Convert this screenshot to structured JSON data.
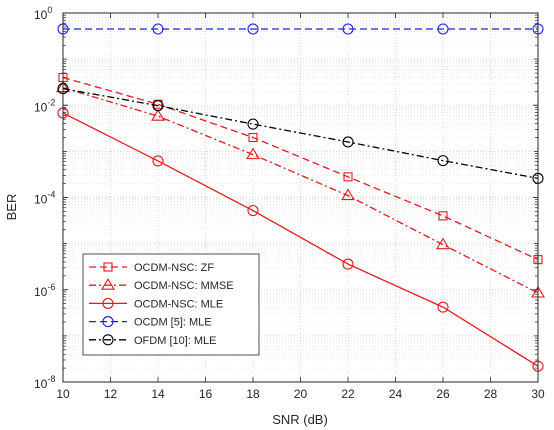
{
  "chart_data": {
    "type": "line",
    "title": "",
    "xlabel": "SNR (dB)",
    "ylabel": "BER",
    "xlim": [
      10,
      30
    ],
    "ylim": [
      1e-08,
      1
    ],
    "yscale": "log",
    "grid": true,
    "minor_grid": true,
    "legend_position": "bottom-left",
    "x_ticks": [
      10,
      12,
      14,
      16,
      18,
      20,
      22,
      24,
      26,
      28,
      30
    ],
    "x_tick_labels": [
      "10",
      "12",
      "14",
      "16",
      "18",
      "20",
      "22",
      "24",
      "26",
      "28",
      "30"
    ],
    "y_ticks": [
      {
        "value": 1,
        "base": "10",
        "exp": "0"
      },
      {
        "value": 0.01,
        "base": "10",
        "exp": "-2"
      },
      {
        "value": 0.0001,
        "base": "10",
        "exp": "-4"
      },
      {
        "value": 1e-06,
        "base": "10",
        "exp": "-6"
      },
      {
        "value": 1e-08,
        "base": "10",
        "exp": "-8"
      }
    ],
    "x": [
      10,
      14,
      18,
      22,
      26,
      30
    ],
    "series": [
      {
        "name": "OCDM-NSC: ZF",
        "color": "#e31a1c",
        "dash": "dashed",
        "marker": "square",
        "values": [
          0.04,
          0.0105,
          0.002,
          0.00028,
          4e-05,
          4.5e-06
        ]
      },
      {
        "name": "OCDM-NSC: MMSE",
        "color": "#e31a1c",
        "dash": "dashdot",
        "marker": "triangle",
        "values": [
          0.024,
          0.0058,
          0.00085,
          0.00011,
          9.5e-06,
          8.5e-07
        ]
      },
      {
        "name": "OCDM-NSC: MLE",
        "color": "#e31a1c",
        "dash": "solid",
        "marker": "circle",
        "values": [
          0.0068,
          0.00062,
          5.2e-05,
          3.6e-06,
          4.2e-07,
          2.2e-08
        ]
      },
      {
        "name": "OCDM [5]: MLE",
        "color": "#1f1fe0",
        "dash": "dashed",
        "marker": "circle",
        "values": [
          0.45,
          0.45,
          0.45,
          0.45,
          0.45,
          0.45
        ]
      },
      {
        "name": "OFDM [10]: MLE",
        "color": "#000000",
        "dash": "dashdot",
        "marker": "circle",
        "values": [
          0.023,
          0.0098,
          0.0039,
          0.0016,
          0.00063,
          0.00026
        ]
      }
    ]
  }
}
